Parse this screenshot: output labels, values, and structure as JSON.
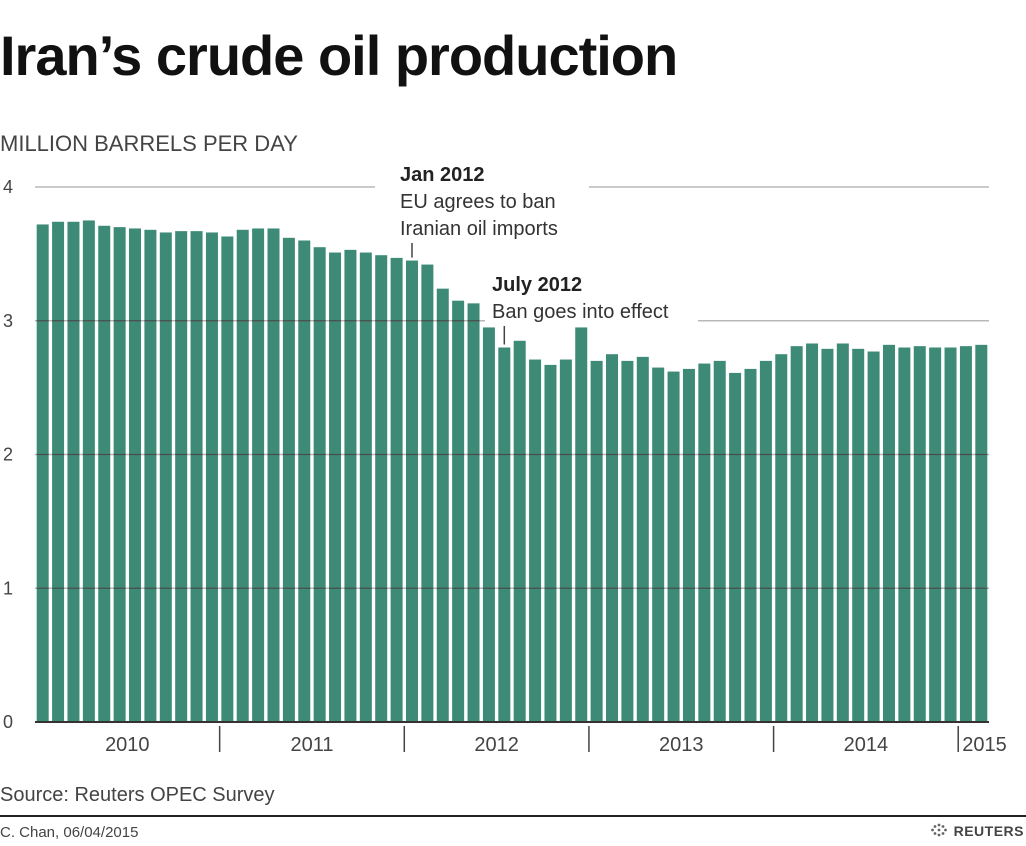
{
  "title": "Iran’s crude oil production",
  "unit_label": "MILLION BARRELS PER DAY",
  "source": "Source: Reuters OPEC Survey",
  "credit": "C. Chan, 06/04/2015",
  "brand": "REUTERS",
  "colors": {
    "bar": "#3d8a77",
    "grid_light": "#b8b8b8",
    "grid_dark": "#4a4a4a",
    "text": "#444444"
  },
  "chart_data": {
    "type": "bar",
    "title": "Iran’s crude oil production",
    "ylabel": "MILLION BARRELS PER DAY",
    "ylim": [
      0,
      4
    ],
    "yticks": [
      0,
      1,
      2,
      3,
      4
    ],
    "grid": true,
    "start": "2010-01",
    "frequency": "monthly",
    "values": [
      3.72,
      3.74,
      3.74,
      3.75,
      3.71,
      3.7,
      3.69,
      3.68,
      3.66,
      3.67,
      3.67,
      3.66,
      3.63,
      3.68,
      3.69,
      3.69,
      3.62,
      3.6,
      3.55,
      3.51,
      3.53,
      3.51,
      3.49,
      3.47,
      3.45,
      3.42,
      3.24,
      3.15,
      3.13,
      2.95,
      2.8,
      2.85,
      2.71,
      2.67,
      2.71,
      2.95,
      2.7,
      2.75,
      2.7,
      2.73,
      2.65,
      2.62,
      2.64,
      2.68,
      2.7,
      2.61,
      2.64,
      2.7,
      2.75,
      2.81,
      2.83,
      2.79,
      2.83,
      2.79,
      2.77,
      2.82,
      2.8,
      2.81,
      2.8,
      2.8,
      2.81,
      2.82
    ],
    "year_labels": [
      "2010",
      "2011",
      "2012",
      "2013",
      "2014",
      "2015"
    ],
    "annotations": [
      {
        "date": "2012-01",
        "title": "Jan 2012",
        "lines": [
          "EU agrees to ban",
          "Iranian oil imports"
        ]
      },
      {
        "date": "2012-07",
        "title": "July 2012",
        "lines": [
          "Ban goes into effect"
        ]
      }
    ]
  }
}
